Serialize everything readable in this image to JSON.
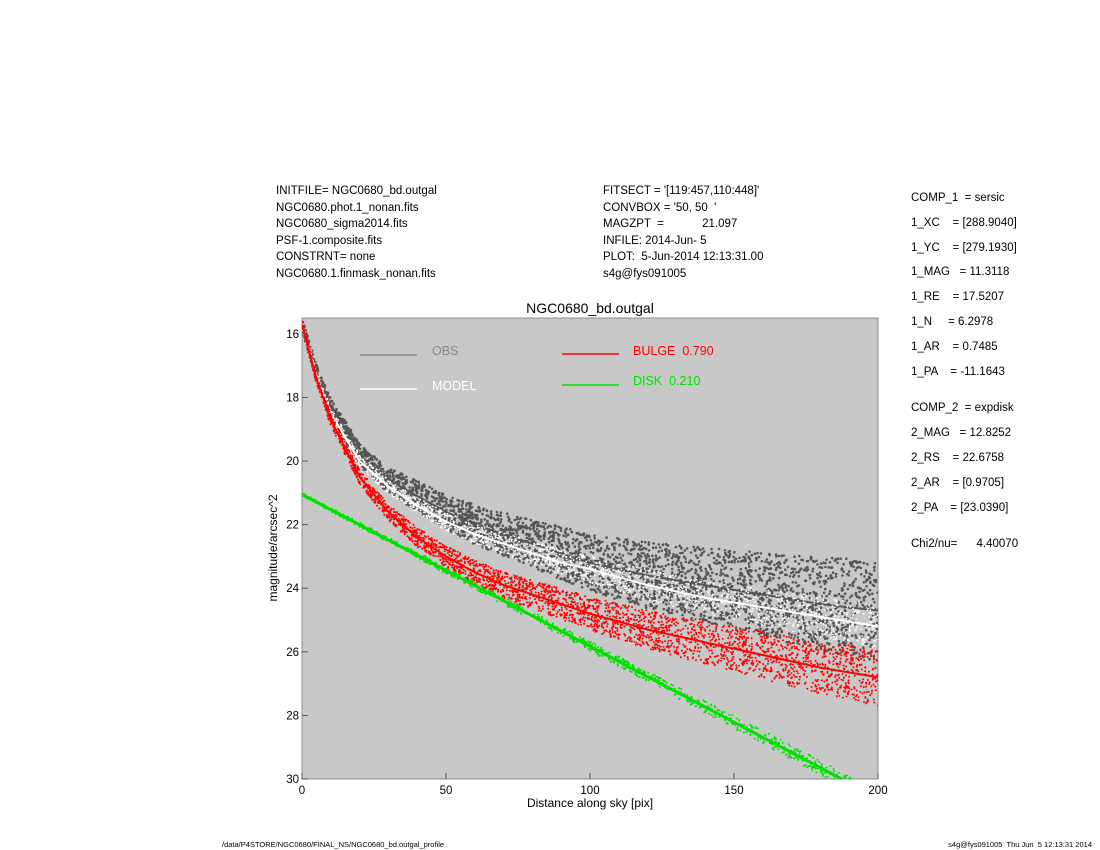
{
  "header_left": [
    "INITFILE= NGC0680_bd.outgal",
    "NGC0680.phot.1_nonan.fits",
    "NGC0680_sigma2014.fits",
    "PSF-1.composite.fits",
    "CONSTRNT= none",
    "NGC0680.1.finmask_nonan.fits"
  ],
  "header_mid": [
    "FITSECT = '[119:457,110:448]'",
    "CONVBOX = '50, 50  '",
    "MAGZPT  =            21.097",
    "INFILE: 2014-Jun- 5",
    "PLOT:  5-Jun-2014 12:13:31.00",
    "s4g@fys091005"
  ],
  "params": {
    "comp1": [
      "COMP_1  = sersic",
      "1_XC    = [288.9040]",
      "1_YC    = [279.1930]",
      "1_MAG   = 11.3118",
      "1_RE    = 17.5207",
      "1_N     = 6.2978",
      "1_AR    = 0.7485",
      "1_PA    = -11.1643"
    ],
    "comp2": [
      "COMP_2  = expdisk",
      "2_MAG   = 12.8252",
      "2_RS    = 22.6758",
      "2_AR    = [0.9705]",
      "2_PA    = [23.0390]"
    ],
    "chi": "Chi2/nu=      4.40070"
  },
  "footer": {
    "left": "/data/P4STORE/NGC0680/FINAL_NS/NGC0680_bd.outgal_profile",
    "right": "s4g@fys091005  Thu Jun  5 12:13:31 2014"
  },
  "chart_data": {
    "type": "scatter",
    "title": "NGC0680_bd.outgal",
    "xlabel": "Distance along sky [pix]",
    "ylabel": "magnitude/arcsec^2",
    "xlim": [
      0,
      200
    ],
    "ylim": [
      30,
      15.5
    ],
    "y_inverted": true,
    "xticks": [
      0,
      50,
      100,
      150,
      200
    ],
    "yticks": [
      16,
      18,
      20,
      22,
      24,
      26,
      28,
      30
    ],
    "background": "#c8c8c8",
    "grid": false,
    "legend": [
      {
        "label": "OBS",
        "color": "#888888"
      },
      {
        "label": "MODEL",
        "color": "#ffffff"
      },
      {
        "label": "BULGE  0.790",
        "color": "#ff0000"
      },
      {
        "label": "DISK  0.210",
        "color": "#00e000"
      }
    ],
    "series": [
      {
        "name": "OBS",
        "color": "#555555",
        "x": [
          0,
          5,
          10,
          20,
          30,
          40,
          50,
          60,
          70,
          80,
          90,
          100,
          120,
          140,
          160,
          180,
          200
        ],
        "y": [
          15.7,
          17.2,
          18.3,
          19.8,
          20.6,
          21.1,
          21.6,
          22.0,
          22.3,
          22.6,
          22.9,
          23.2,
          23.6,
          23.9,
          24.2,
          24.5,
          24.7
        ]
      },
      {
        "name": "MODEL",
        "color": "#ffffff",
        "x": [
          0,
          5,
          10,
          20,
          30,
          40,
          50,
          60,
          70,
          80,
          90,
          100,
          120,
          140,
          160,
          180,
          200
        ],
        "y": [
          15.7,
          17.3,
          18.5,
          20.0,
          20.8,
          21.4,
          21.9,
          22.3,
          22.6,
          22.9,
          23.2,
          23.4,
          23.9,
          24.3,
          24.6,
          24.9,
          25.2
        ]
      },
      {
        "name": "BULGE  0.790",
        "color": "#ff0000",
        "x": [
          0,
          5,
          10,
          20,
          30,
          40,
          50,
          60,
          70,
          80,
          90,
          100,
          120,
          140,
          160,
          180,
          200
        ],
        "y": [
          15.7,
          17.4,
          18.7,
          20.5,
          21.6,
          22.4,
          23.0,
          23.5,
          23.9,
          24.2,
          24.5,
          24.8,
          25.3,
          25.7,
          26.1,
          26.5,
          26.8
        ]
      },
      {
        "name": "DISK  0.210",
        "color": "#00e000",
        "x": [
          0,
          200
        ],
        "y": [
          21.05,
          30.6
        ]
      }
    ]
  }
}
